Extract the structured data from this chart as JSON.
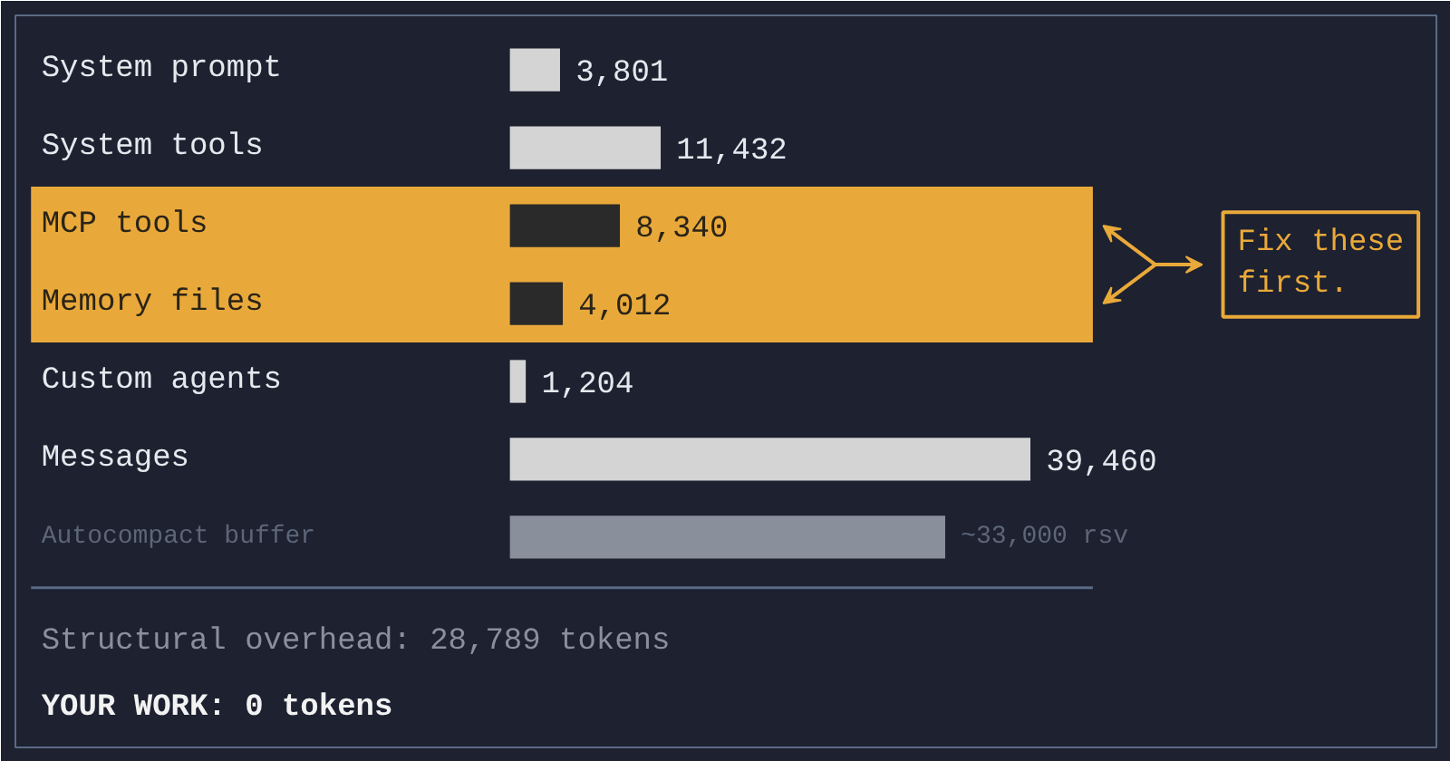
{
  "chart_data": {
    "type": "bar",
    "orientation": "horizontal",
    "categories": [
      "System prompt",
      "System tools",
      "MCP tools",
      "Memory files",
      "Custom agents",
      "Messages",
      "Autocompact buffer"
    ],
    "values": [
      3801,
      11432,
      8340,
      4012,
      1204,
      39460,
      33000
    ],
    "value_labels": [
      "3,801",
      "11,432",
      "8,340",
      "4,012",
      "1,204",
      "39,460",
      "~33,000 rsv"
    ],
    "colors": [
      "#d4d4d4",
      "#d4d4d4",
      "#2a2a2a",
      "#2a2a2a",
      "#d4d4d4",
      "#d4d4d4",
      "#8a8f9c"
    ],
    "bands": [
      {
        "axis": "y",
        "from": "MCP tools",
        "to": "Memory files",
        "color": "#e9a93a"
      }
    ],
    "annotations": [
      "Structural overhead: 28,789 tokens",
      "YOUR WORK: 0 tokens",
      "Fix these first."
    ],
    "grid": false
  }
}
